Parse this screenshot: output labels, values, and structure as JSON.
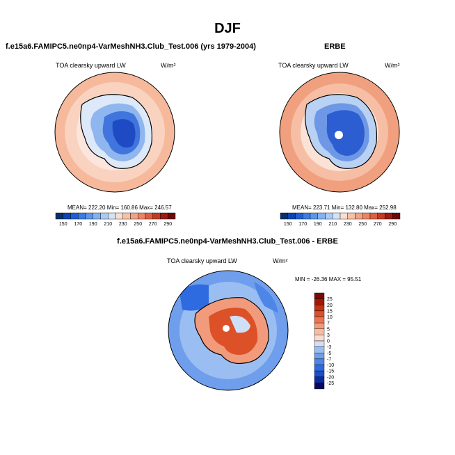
{
  "page": {
    "title": "DJF"
  },
  "panels": [
    {
      "id": "model",
      "header": "f.e15a6.FAMIPC5.ne0np4-VarMeshNH3.Club_Test.006 (yrs 1979-2004)",
      "variable": "TOA clearsky upward LW",
      "units": "W/m²",
      "stats": "MEAN= 222.20   Min= 160.86   Max= 246.57"
    },
    {
      "id": "obs",
      "header": "ERBE",
      "variable": "TOA clearsky upward LW",
      "units": "W/m²",
      "stats": "MEAN= 223.71   Min= 132.80   Max= 252.98"
    },
    {
      "id": "diff",
      "header": "f.e15a6.FAMIPC5.ne0np4-VarMeshNH3.Club_Test.006 - ERBE",
      "variable": "TOA clearsky upward LW",
      "units": "W/m²",
      "stats": "MIN = -26.36  MAX =  95.51"
    }
  ],
  "chart_data": [
    {
      "type": "heatmap",
      "projection": "south polar stereographic",
      "title": "TOA clearsky upward LW",
      "units": "W/m²",
      "mean": 222.2,
      "min": 160.86,
      "max": 246.57,
      "colorbar": {
        "orientation": "horizontal",
        "levels": [
          150,
          160,
          170,
          180,
          190,
          200,
          210,
          220,
          230,
          240,
          250,
          260,
          270,
          280,
          290
        ],
        "tick_labels": [
          "150",
          "170",
          "190",
          "210",
          "230",
          "250",
          "270",
          "290"
        ],
        "colors": [
          "#08306b",
          "#0c44b0",
          "#1f5fd6",
          "#3b7de0",
          "#5d97e8",
          "#83b2ef",
          "#a9cbf5",
          "#d3e4f9",
          "#f9ddd0",
          "#f7c0a8",
          "#f3a283",
          "#ed8463",
          "#dd5f43",
          "#c23b27",
          "#9b1c15",
          "#6b0a0a"
        ]
      }
    },
    {
      "type": "heatmap",
      "projection": "south polar stereographic",
      "title": "TOA clearsky upward LW",
      "units": "W/m²",
      "mean": 223.71,
      "min": 132.8,
      "max": 252.98,
      "colorbar": {
        "orientation": "horizontal",
        "levels": [
          150,
          160,
          170,
          180,
          190,
          200,
          210,
          220,
          230,
          240,
          250,
          260,
          270,
          280,
          290
        ],
        "tick_labels": [
          "150",
          "170",
          "190",
          "210",
          "230",
          "250",
          "270",
          "290"
        ],
        "colors": [
          "#08306b",
          "#0c44b0",
          "#1f5fd6",
          "#3b7de0",
          "#5d97e8",
          "#83b2ef",
          "#a9cbf5",
          "#d3e4f9",
          "#f9ddd0",
          "#f7c0a8",
          "#f3a283",
          "#ed8463",
          "#dd5f43",
          "#c23b27",
          "#9b1c15",
          "#6b0a0a"
        ]
      }
    },
    {
      "type": "heatmap",
      "projection": "south polar stereographic",
      "title": "TOA clearsky upward LW",
      "units": "W/m²",
      "min": -26.36,
      "max": 95.51,
      "colorbar": {
        "orientation": "vertical",
        "levels": [
          -25,
          -20,
          -15,
          -10,
          -7,
          -5,
          -3,
          0,
          3,
          5,
          7,
          10,
          15,
          20,
          25
        ],
        "tick_labels": [
          "25",
          "20",
          "15",
          "10",
          "7",
          "5",
          "3",
          "0",
          "-3",
          "-5",
          "-7",
          "-10",
          "-15",
          "-20",
          "-25"
        ],
        "colors": [
          "#08085f",
          "#0d2aa0",
          "#1a4fd0",
          "#2e6ae0",
          "#4d86e6",
          "#6f9fec",
          "#9bbef2",
          "#cfdff8",
          "#f9dcd0",
          "#f6bda5",
          "#f29b7c",
          "#ea7650",
          "#dd5128",
          "#c4320f",
          "#a01806",
          "#7a0a02"
        ]
      }
    }
  ]
}
